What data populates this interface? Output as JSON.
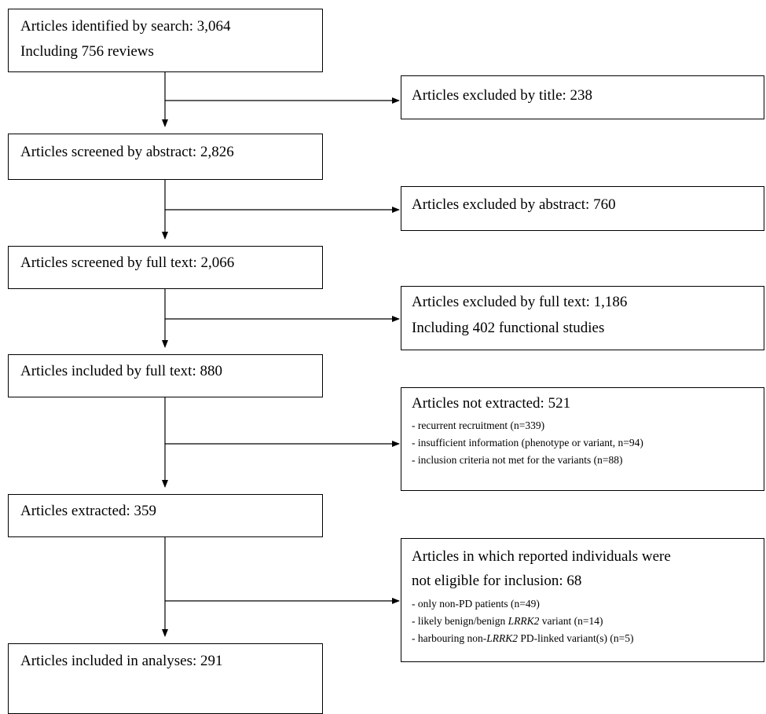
{
  "main": {
    "identified": {
      "line1": "Articles identified by search: 3,064",
      "line2": "Including 756 reviews"
    },
    "screened_abstract": "Articles screened by abstract: 2,826",
    "screened_fulltext": "Articles screened by full text: 2,066",
    "included_fulltext": "Articles included by full text: 880",
    "extracted": "Articles extracted: 359",
    "included_analyses": "Articles included in analyses: 291"
  },
  "side": {
    "excluded_title": "Articles excluded by title: 238",
    "excluded_abstract": "Articles excluded by abstract: 760",
    "excluded_fulltext": {
      "line1": "Articles excluded by full text: 1,186",
      "line2": "Including 402 functional studies"
    },
    "not_extracted": {
      "title": "Articles not extracted: 521",
      "items": [
        "- recurrent recruitment (n=339)",
        "- insufficient information (phenotype or variant, n=94)",
        "- inclusion criteria not met for the variants (n=88)"
      ]
    },
    "not_eligible": {
      "title_line1": "Articles in which reported individuals were",
      "title_line2": "not eligible for inclusion: 68",
      "item1": "- only non-PD patients (n=49)",
      "item2_prefix": "- likely benign/benign ",
      "item2_italic": "LRRK2",
      "item2_suffix": " variant (n=14)",
      "item3_prefix": "- harbouring non-",
      "item3_italic": "LRRK2",
      "item3_suffix": " PD-linked variant(s) (n=5)"
    }
  }
}
